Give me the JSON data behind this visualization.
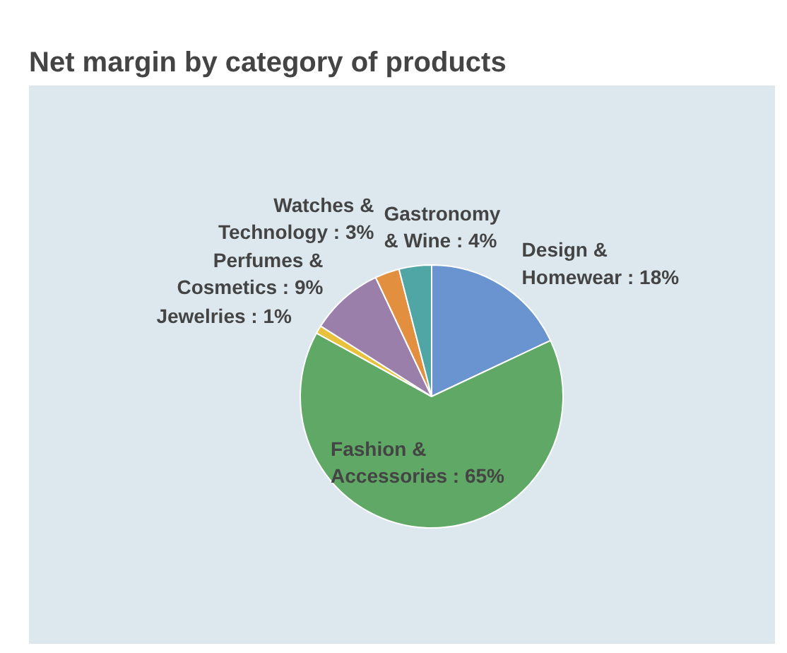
{
  "chart_data": {
    "type": "pie",
    "title": "Net margin by category of products",
    "categories": [
      "Design &\nHomewear",
      "Fashion &\nAccessories",
      "Jewelries",
      "Perfumes &\nCosmetics",
      "Watches &\nTechnology",
      "Gastronomy\n& Wine"
    ],
    "values": [
      18,
      65,
      1,
      9,
      3,
      4
    ],
    "colors": [
      "#6a94cf",
      "#5fa865",
      "#e8c23c",
      "#9a7fab",
      "#e38f40",
      "#4fa6a4"
    ],
    "value_labels": [
      ": 18%",
      ": 65%",
      ": 1%",
      ": 9%",
      ": 3%",
      ": 4%"
    ]
  }
}
